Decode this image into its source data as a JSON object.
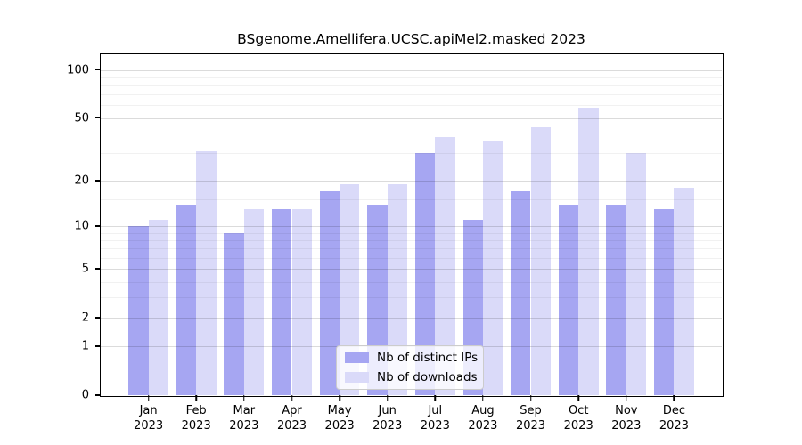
{
  "chart_data": {
    "type": "bar",
    "title": "BSgenome.Amellifera.UCSC.apiMel2.masked 2023",
    "categories": [
      "Jan",
      "Feb",
      "Mar",
      "Apr",
      "May",
      "Jun",
      "Jul",
      "Aug",
      "Sep",
      "Oct",
      "Nov",
      "Dec"
    ],
    "year_label": "2023",
    "series": [
      {
        "name": "Nb of distinct IPs",
        "color": "#a6a6f2",
        "values": [
          10,
          14,
          9,
          13,
          17,
          14,
          30,
          11,
          17,
          14,
          14,
          13
        ]
      },
      {
        "name": "Nb of downloads",
        "color": "#dadaf9",
        "values": [
          11,
          31,
          13,
          13,
          19,
          19,
          38,
          36,
          44,
          58,
          30,
          18
        ]
      }
    ],
    "xlabel": "",
    "ylabel": "",
    "y_axis": {
      "scale": "log1p",
      "ticks": [
        0,
        1,
        2,
        5,
        10,
        20,
        50,
        100
      ],
      "minor_gridlines": [
        3,
        4,
        6,
        7,
        8,
        9,
        15,
        30,
        40,
        60,
        70,
        80,
        90
      ],
      "ylim": [
        0,
        125
      ]
    },
    "grid": "horizontal-over-bars",
    "legend": {
      "position": "bottom-center"
    },
    "colors": {
      "background": "#ffffff",
      "axis": "#000000",
      "major_grid": "#d9d9d9",
      "minor_grid": "#efefef"
    }
  }
}
